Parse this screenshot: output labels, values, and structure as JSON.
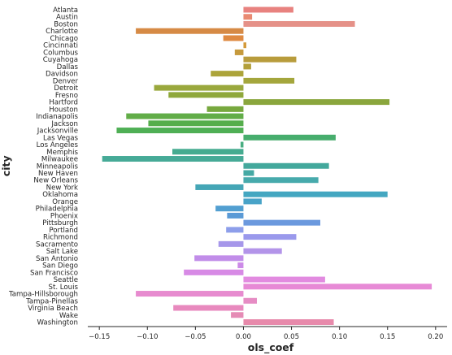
{
  "chart_data": {
    "type": "bar",
    "orientation": "horizontal",
    "xlabel": "ols_coef",
    "ylabel": "city",
    "xlim": [
      -0.162,
      0.212
    ],
    "xticks": [
      -0.15,
      -0.1,
      -0.05,
      0.0,
      0.05,
      0.1,
      0.15,
      0.2
    ],
    "xtick_labels": [
      "−0.15",
      "−0.10",
      "−0.05",
      "0.00",
      "0.05",
      "0.10",
      "0.15",
      "0.20"
    ],
    "grid": false,
    "categories": [
      "Atlanta",
      "Austin",
      "Boston",
      "Charlotte",
      "Chicago",
      "Cincinnati",
      "Columbus",
      "Cuyahoga",
      "Dallas",
      "Davidson",
      "Denver",
      "Detroit",
      "Fresno",
      "Hartford",
      "Houston",
      "Indianapolis",
      "Jackson",
      "Jacksonville",
      "Las Vegas",
      "Los Angeles",
      "Memphis",
      "Milwaukee",
      "Minneapolis",
      "New Haven",
      "New Orleans",
      "New York",
      "Oklahoma",
      "Orange",
      "Philadelphia",
      "Phoenix",
      "Pittsburgh",
      "Portland",
      "Richmond",
      "Sacramento",
      "Salt Lake",
      "San Antonio",
      "San Diego",
      "San Francisco",
      "Seattle",
      "St. Louis",
      "Tampa-Hillsborough",
      "Tampa-Pinellas",
      "Virginia Beach",
      "Wake",
      "Washington"
    ],
    "values": [
      0.052,
      0.009,
      0.116,
      -0.112,
      -0.021,
      0.003,
      -0.009,
      0.055,
      0.008,
      -0.034,
      0.053,
      -0.093,
      -0.078,
      0.152,
      -0.038,
      -0.122,
      -0.099,
      -0.132,
      0.096,
      -0.003,
      -0.074,
      -0.147,
      0.089,
      0.011,
      0.078,
      -0.05,
      0.15,
      0.019,
      -0.029,
      -0.017,
      0.08,
      -0.018,
      0.055,
      -0.026,
      0.04,
      -0.051,
      -0.006,
      -0.062,
      0.085,
      0.196,
      -0.112,
      0.014,
      -0.073,
      -0.013,
      0.094
    ],
    "colors": [
      "#e8827f",
      "#e98a72",
      "#e59188",
      "#d68a45",
      "#df8a42",
      "#d49a3a",
      "#c69a3c",
      "#b89c3c",
      "#b39f3a",
      "#aca43a",
      "#a4a63c",
      "#9aa83d",
      "#8fa83b",
      "#8aa63d",
      "#77a83e",
      "#62ad48",
      "#55ae4c",
      "#4faf55",
      "#47ad6d",
      "#48ad80",
      "#45ab90",
      "#46aa97",
      "#43a89c",
      "#44a9a4",
      "#47aaac",
      "#45a6b6",
      "#44a7c1",
      "#48a3c8",
      "#529fd1",
      "#5a9ad6",
      "#6b99de",
      "#8d9eea",
      "#9a99ec",
      "#a697ea",
      "#b394e9",
      "#c18de9",
      "#cc8ae8",
      "#d78ae5",
      "#e28be0",
      "#e78ad6",
      "#e78bcf",
      "#e68cc4",
      "#e889be",
      "#e58bb5",
      "#e78aab"
    ]
  }
}
